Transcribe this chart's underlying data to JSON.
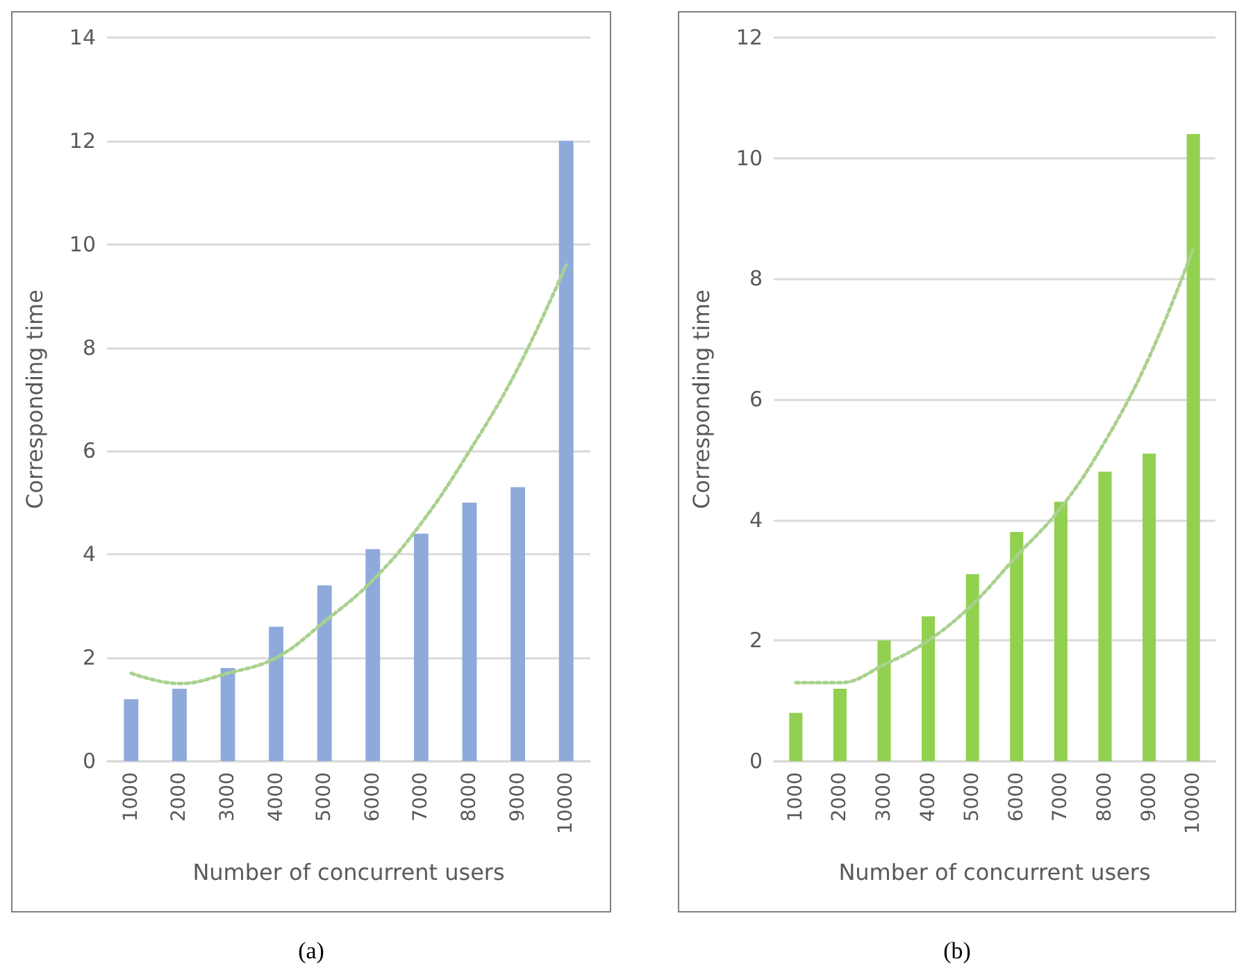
{
  "chart_data": [
    {
      "type": "bar",
      "xlabel": "Number of concurrent users",
      "ylabel": "Corresponding time",
      "categories": [
        "1000",
        "2000",
        "3000",
        "4000",
        "5000",
        "6000",
        "7000",
        "8000",
        "9000",
        "10000"
      ],
      "series": [
        {
          "color": "#8eaadb",
          "values": [
            1.2,
            1.4,
            1.8,
            2.6,
            3.4,
            4.1,
            4.4,
            5.0,
            5.3,
            12.0
          ]
        },
        {
          "type": "line",
          "color": "#a9d18e",
          "line_style": "dotted",
          "marker": "none",
          "values": [
            1.7,
            1.5,
            1.7,
            2.0,
            2.7,
            3.5,
            4.6,
            6.0,
            7.6,
            9.6
          ]
        }
      ],
      "ylim": [
        0,
        14
      ],
      "yticks": [
        0,
        2,
        4,
        6,
        8,
        10,
        12,
        14
      ],
      "grid": "y",
      "annotations": [
        "(a)"
      ]
    },
    {
      "type": "bar",
      "xlabel": "Number of concurrent users",
      "ylabel": "Corresponding time",
      "categories": [
        "1000",
        "2000",
        "3000",
        "4000",
        "5000",
        "6000",
        "7000",
        "8000",
        "9000",
        "10000"
      ],
      "series": [
        {
          "color": "#92d050",
          "values": [
            0.8,
            1.2,
            2.0,
            2.4,
            3.1,
            3.8,
            4.3,
            4.8,
            5.1,
            10.4
          ]
        },
        {
          "type": "line",
          "color": "#a9d18e",
          "line_style": "dotted",
          "marker": "none",
          "values": [
            1.3,
            1.3,
            1.6,
            2.0,
            2.6,
            3.4,
            4.2,
            5.3,
            6.7,
            8.5
          ]
        }
      ],
      "ylim": [
        0,
        12
      ],
      "yticks": [
        0,
        2,
        4,
        6,
        8,
        10,
        12
      ],
      "grid": "y",
      "annotations": [
        "(b)"
      ]
    }
  ]
}
